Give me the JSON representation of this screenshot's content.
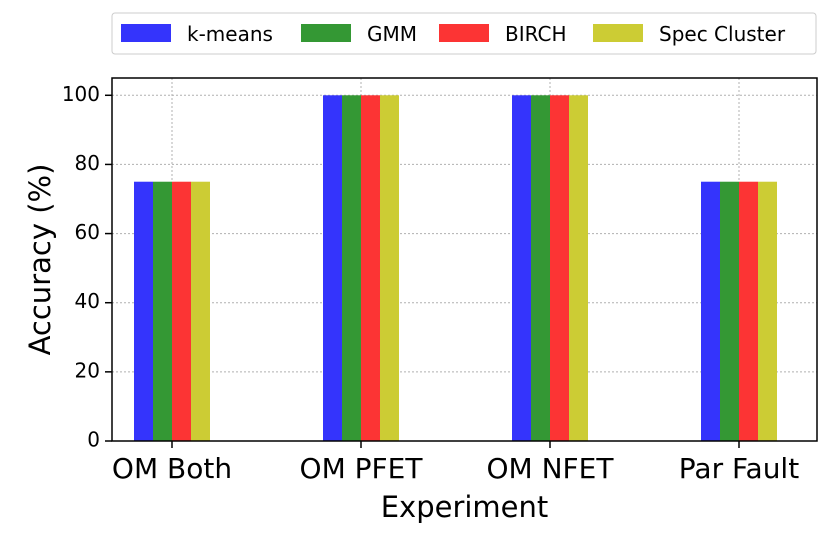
{
  "chart_data": {
    "type": "bar",
    "title": "",
    "xlabel": "Experiment",
    "ylabel": "Accuracy (%)",
    "categories": [
      "OM Both",
      "OM PFET",
      "OM NFET",
      "Par Fault"
    ],
    "series": [
      {
        "name": "k-means",
        "color": "#3434fc",
        "values": [
          75,
          100,
          100,
          75
        ]
      },
      {
        "name": "GMM",
        "color": "#349834",
        "values": [
          75,
          100,
          100,
          75
        ]
      },
      {
        "name": "BIRCH",
        "color": "#fc3434",
        "values": [
          75,
          100,
          100,
          75
        ]
      },
      {
        "name": "Spec Cluster",
        "color": "#cccc34",
        "values": [
          75,
          100,
          100,
          75
        ]
      }
    ],
    "ylim": [
      0,
      105
    ],
    "yticks": [
      "0",
      "20",
      "40",
      "60",
      "80",
      "100"
    ],
    "grid": true,
    "legend_position": "top"
  }
}
